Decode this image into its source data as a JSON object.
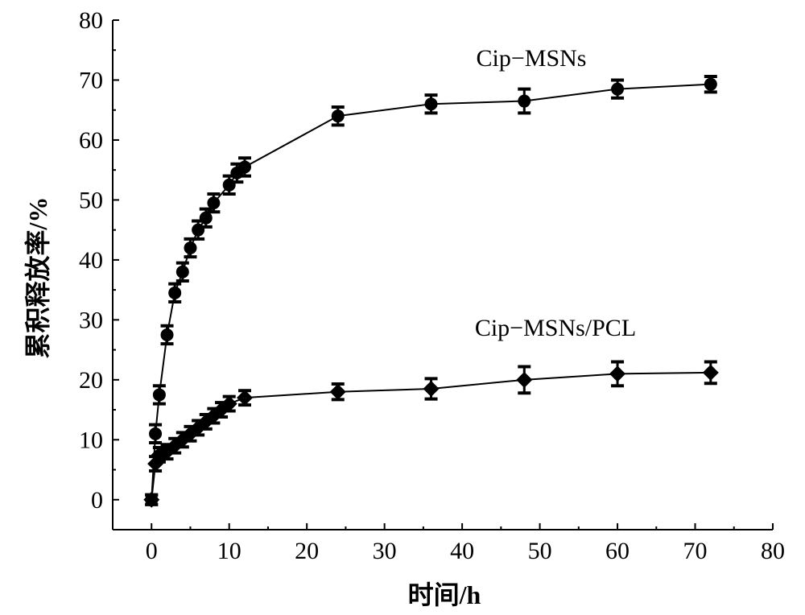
{
  "chart_data": {
    "type": "line",
    "title": "",
    "xlabel": "时间/h",
    "ylabel": "累积释放率/%",
    "xlim": [
      -5,
      80
    ],
    "ylim": [
      -5,
      80
    ],
    "xticks": [
      0,
      10,
      20,
      30,
      40,
      50,
      60,
      70,
      80
    ],
    "yticks": [
      0,
      10,
      20,
      30,
      40,
      50,
      60,
      70,
      80
    ],
    "grid": false,
    "series": [
      {
        "name": "Cip−MSNs",
        "marker": "circle",
        "x": [
          0,
          0.5,
          1,
          2,
          3,
          4,
          5,
          6,
          7,
          8,
          10,
          11,
          12,
          24,
          36,
          48,
          60,
          72
        ],
        "y": [
          0,
          11,
          17.5,
          27.5,
          34.5,
          38,
          42,
          45,
          47,
          49.5,
          52.5,
          54.5,
          55.5,
          64,
          66,
          66.5,
          68.5,
          69.3
        ],
        "err": [
          0.8,
          1.5,
          1.5,
          1.5,
          1.5,
          1.5,
          1.5,
          1.5,
          1.5,
          1.5,
          1.5,
          1.5,
          1.5,
          1.5,
          1.5,
          2,
          1.5,
          1.3
        ]
      },
      {
        "name": "Cip−MSNs/PCL",
        "marker": "diamond",
        "x": [
          0,
          0.5,
          1,
          2,
          3,
          4,
          5,
          6,
          7,
          8,
          9,
          10,
          12,
          24,
          36,
          48,
          60,
          72
        ],
        "y": [
          0,
          6,
          7.5,
          8,
          9,
          10,
          11,
          12,
          13,
          14,
          15,
          16,
          17,
          18,
          18.5,
          20,
          21,
          21.2
        ],
        "err": [
          0.8,
          1.2,
          1.2,
          1.2,
          1.2,
          1.2,
          1.2,
          1.2,
          1.2,
          1.2,
          1.2,
          1.2,
          1.2,
          1.3,
          1.7,
          2.2,
          2,
          1.8
        ]
      }
    ]
  }
}
